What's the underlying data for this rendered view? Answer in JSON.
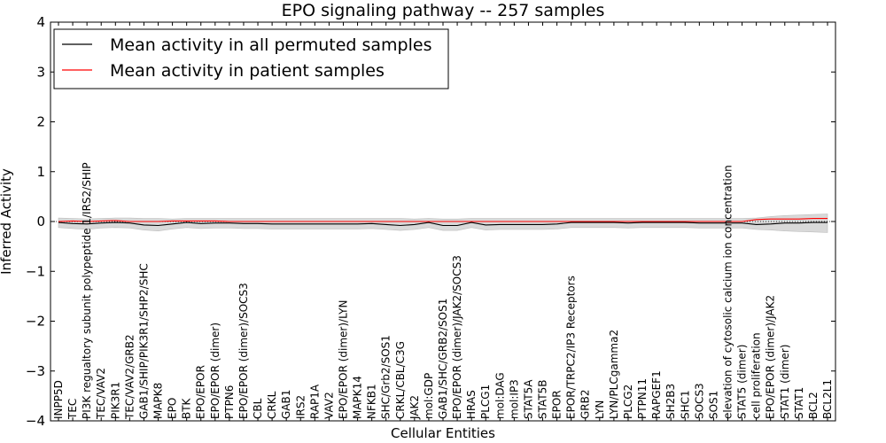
{
  "chart_data": {
    "type": "line",
    "title": "EPO signaling pathway -- 257 samples",
    "xlabel": "Cellular Entities",
    "ylabel": "Inferred Activity",
    "ylim": [
      -4,
      4
    ],
    "yticks": [
      -4,
      -3,
      -2,
      -1,
      0,
      1,
      2,
      3,
      4
    ],
    "ytick_labels": [
      "−4",
      "−3",
      "−2",
      "−1",
      "0",
      "1",
      "2",
      "3",
      "4"
    ],
    "grid": false,
    "legend_position": "top-left",
    "categories": [
      "INPP5D",
      "TEC",
      "PI3K regualtory subunit polypeptide 1/IRS2/SHIP",
      "TEC/VAV2",
      "PIK3R1",
      "TEC/VAV2/GRB2",
      "GAB1/SHIP/PIK3R1/SHP2/SHC",
      "MAPK8",
      "EPO",
      "BTK",
      "EPO/EPOR",
      "EPO/EPOR (dimer)",
      "PTPN6",
      "EPO/EPOR (dimer)/SOCS3",
      "CBL",
      "CRKL",
      "GAB1",
      "IRS2",
      "RAP1A",
      "VAV2",
      "EPO/EPOR (dimer)/LYN",
      "MAPK14",
      "NFKB1",
      "SHC/Grb2/SOS1",
      "CRKL/CBL/C3G",
      "JAK2",
      "mol:GDP",
      "GAB1/SHC/GRB2/SOS1",
      "EPO/EPOR (dimer)/JAK2/SOCS3",
      "HRAS",
      "PLCG1",
      "mol:DAG",
      "mol:IP3",
      "STAT5A",
      "STAT5B",
      "EPOR",
      "EPOR/TRPC2/IP3 Receptors",
      "GRB2",
      "LYN",
      "LYN/PLCgamma2",
      "PLCG2",
      "PTPN11",
      "RAPGEF1",
      "SH2B3",
      "SHC1",
      "SOCS3",
      "SOS1",
      "elevation of cytosolic calcium ion concentration",
      "STAT5 (dimer)",
      "cell proliferation",
      "EPO/EPOR (dimer)/JAK2",
      "STAT1 (dimer)",
      "STAT1",
      "BCL2",
      "BCL2L1"
    ],
    "series": [
      {
        "name": "Mean activity in all permuted samples",
        "color": "#000000",
        "values": [
          -0.02,
          -0.04,
          -0.05,
          -0.03,
          -0.02,
          -0.03,
          -0.07,
          -0.08,
          -0.05,
          -0.02,
          -0.04,
          -0.03,
          -0.03,
          -0.04,
          -0.04,
          -0.05,
          -0.05,
          -0.05,
          -0.05,
          -0.05,
          -0.05,
          -0.05,
          -0.04,
          -0.06,
          -0.08,
          -0.06,
          -0.02,
          -0.08,
          -0.08,
          -0.02,
          -0.07,
          -0.06,
          -0.06,
          -0.06,
          -0.06,
          -0.05,
          -0.02,
          -0.02,
          -0.02,
          -0.02,
          -0.03,
          -0.02,
          -0.02,
          -0.02,
          -0.02,
          -0.03,
          -0.03,
          -0.03,
          -0.03,
          -0.06,
          -0.05,
          -0.03,
          -0.03,
          -0.02,
          -0.02
        ],
        "band_upper": [
          0.07,
          0.06,
          0.05,
          0.06,
          0.07,
          0.07,
          0.06,
          0.06,
          0.05,
          0.06,
          0.06,
          0.06,
          0.06,
          0.06,
          0.06,
          0.06,
          0.06,
          0.06,
          0.06,
          0.06,
          0.06,
          0.06,
          0.06,
          0.06,
          0.06,
          0.05,
          0.06,
          0.05,
          0.05,
          0.06,
          0.06,
          0.06,
          0.06,
          0.06,
          0.06,
          0.06,
          0.06,
          0.06,
          0.06,
          0.06,
          0.06,
          0.06,
          0.06,
          0.06,
          0.06,
          0.06,
          0.06,
          0.06,
          0.06,
          0.07,
          0.1,
          0.12,
          0.13,
          0.14,
          0.15
        ],
        "band_lower": [
          -0.12,
          -0.14,
          -0.16,
          -0.13,
          -0.12,
          -0.13,
          -0.17,
          -0.19,
          -0.15,
          -0.12,
          -0.14,
          -0.13,
          -0.13,
          -0.14,
          -0.14,
          -0.15,
          -0.15,
          -0.15,
          -0.15,
          -0.15,
          -0.15,
          -0.15,
          -0.14,
          -0.16,
          -0.18,
          -0.16,
          -0.12,
          -0.18,
          -0.18,
          -0.12,
          -0.17,
          -0.16,
          -0.16,
          -0.16,
          -0.16,
          -0.15,
          -0.12,
          -0.12,
          -0.12,
          -0.12,
          -0.13,
          -0.12,
          -0.12,
          -0.12,
          -0.12,
          -0.13,
          -0.13,
          -0.13,
          -0.13,
          -0.16,
          -0.17,
          -0.19,
          -0.2,
          -0.21,
          -0.22
        ]
      },
      {
        "name": "Mean activity in patient samples",
        "color": "#ff0000",
        "values": [
          0.0,
          0.01,
          0.0,
          0.01,
          0.02,
          0.0,
          0.0,
          0.0,
          0.01,
          0.01,
          0.01,
          0.01,
          0.0,
          0.0,
          0.0,
          0.0,
          0.0,
          0.0,
          0.0,
          0.0,
          0.0,
          0.0,
          0.0,
          0.0,
          0.0,
          0.0,
          0.0,
          0.0,
          0.0,
          0.0,
          0.0,
          0.0,
          0.0,
          0.0,
          0.0,
          0.0,
          0.0,
          0.0,
          0.0,
          0.0,
          0.0,
          0.0,
          0.0,
          0.0,
          0.0,
          0.0,
          0.0,
          0.0,
          0.0,
          0.04,
          0.05,
          0.05,
          0.05,
          0.06,
          0.06
        ]
      }
    ]
  }
}
